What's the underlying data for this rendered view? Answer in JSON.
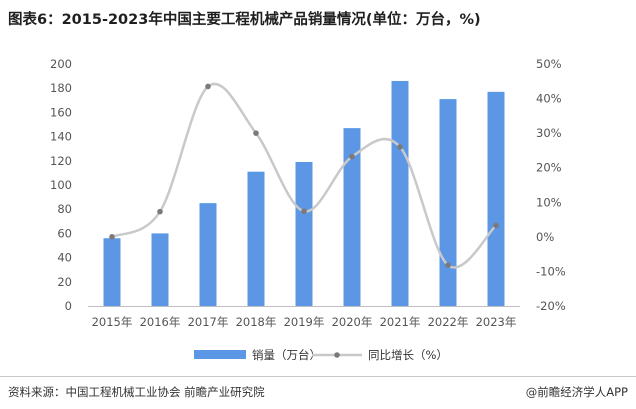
{
  "title": "图表6：2015-2023年中国主要工程机械产品销量情况(单位：万台，%)",
  "source": "资料来源：中国工程机械工业协会 前瞻产业研究院",
  "brand": "@前瞻经济学人APP",
  "colors": {
    "bar": "#5b97e5",
    "line": "#c9c9c9",
    "marker": "#7a7a7a",
    "axis_text": "#555555"
  },
  "chart_data": {
    "type": "bar",
    "title": "图表6：2015-2023年中国主要工程机械产品销量情况(单位：万台，%)",
    "categories": [
      "2015年",
      "2016年",
      "2017年",
      "2018年",
      "2019年",
      "2020年",
      "2021年",
      "2022年",
      "2023年"
    ],
    "series": [
      {
        "name": "销量（万台）",
        "type": "bar",
        "axis": "left",
        "values": [
          56,
          60,
          85,
          111,
          119,
          147,
          186,
          171,
          177
        ]
      },
      {
        "name": "同比增长（%）",
        "type": "line",
        "axis": "right",
        "values": [
          0,
          7.3,
          43.5,
          30.0,
          7.4,
          23.2,
          26.0,
          -8.2,
          3.3
        ]
      }
    ],
    "y_left": {
      "lim": [
        0,
        200
      ],
      "ticks": [
        "0",
        "20",
        "40",
        "60",
        "80",
        "100",
        "120",
        "140",
        "160",
        "180",
        "200"
      ]
    },
    "y_right": {
      "lim": [
        -20,
        50
      ],
      "ticks": [
        "-20%",
        "-10%",
        "0%",
        "10%",
        "20%",
        "30%",
        "40%",
        "50%"
      ]
    },
    "grid": false,
    "legend": "bottom-center"
  }
}
